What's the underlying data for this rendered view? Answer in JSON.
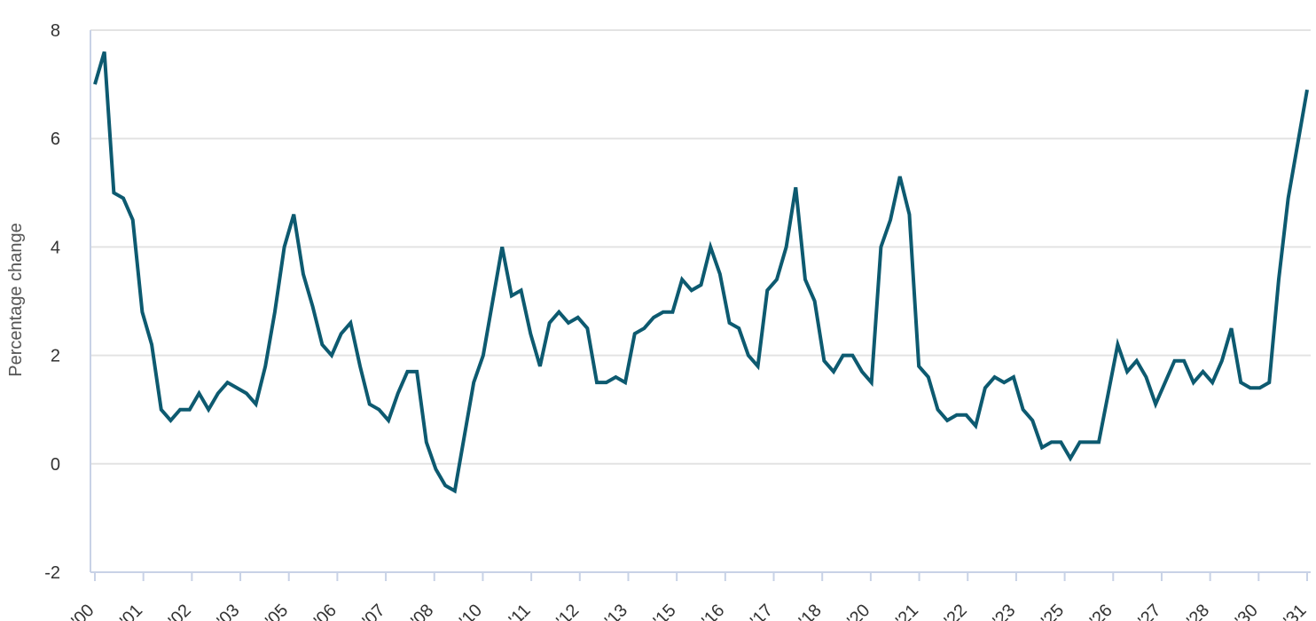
{
  "chart_data": {
    "type": "line",
    "ylabel": "Percentage change",
    "ylim": [
      -2,
      8
    ],
    "y_ticks": [
      "8",
      "6",
      "4",
      "2",
      "0",
      "-2"
    ],
    "x_tick_labels": [
      "'00",
      "'01",
      "'02",
      "'03",
      "'05",
      "'06",
      "'07",
      "'08",
      "'10",
      "'11",
      "'12",
      "'13",
      "'15",
      "'16",
      "'17",
      "'18",
      "'20",
      "'21",
      "'22",
      "'23",
      "'25",
      "'26",
      "'27",
      "'28",
      "'30",
      "'31"
    ],
    "grid": true,
    "colors": {
      "line": "#0d5a70",
      "grid": "#e3e3e3",
      "axis": "#c8d2e6"
    },
    "series": [
      {
        "values": [
          7.0,
          7.6,
          5.0,
          4.9,
          4.5,
          2.8,
          2.2,
          1.0,
          0.8,
          1.0,
          1.0,
          1.3,
          1.0,
          1.3,
          1.5,
          1.4,
          1.3,
          1.1,
          1.8,
          2.8,
          4.0,
          4.6,
          3.5,
          2.9,
          2.2,
          2.0,
          2.4,
          2.6,
          1.8,
          1.1,
          1.0,
          0.8,
          1.3,
          1.7,
          1.7,
          0.4,
          -0.1,
          -0.4,
          -0.5,
          0.5,
          1.5,
          2.0,
          3.0,
          4.0,
          3.1,
          3.2,
          2.4,
          1.8,
          2.6,
          2.8,
          2.6,
          2.7,
          2.5,
          1.5,
          1.5,
          1.6,
          1.5,
          2.4,
          2.5,
          2.7,
          2.8,
          2.8,
          3.4,
          3.2,
          3.3,
          4.0,
          3.5,
          2.6,
          2.5,
          2.0,
          1.8,
          3.2,
          3.4,
          4.0,
          5.1,
          3.4,
          3.0,
          1.9,
          1.7,
          2.0,
          2.0,
          1.7,
          1.5,
          4.0,
          4.5,
          5.3,
          4.6,
          1.8,
          1.6,
          1.0,
          0.8,
          0.9,
          0.9,
          0.7,
          1.4,
          1.6,
          1.5,
          1.6,
          1.0,
          0.8,
          0.3,
          0.4,
          0.4,
          0.1,
          0.4,
          0.4,
          0.4,
          1.3,
          2.2,
          1.7,
          1.9,
          1.6,
          1.1,
          1.5,
          1.9,
          1.9,
          1.5,
          1.7,
          1.5,
          1.9,
          2.5,
          1.5,
          1.4,
          1.4,
          1.5,
          3.4,
          4.9,
          5.9,
          6.9
        ]
      }
    ]
  }
}
